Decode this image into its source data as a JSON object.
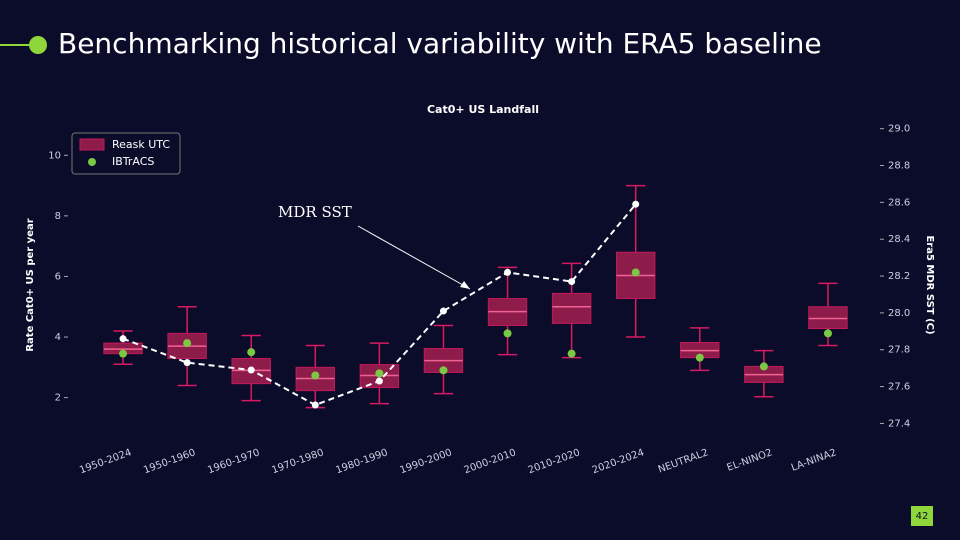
{
  "slide_title": "Benchmarking historical variability with ERA5 baseline",
  "page_number": "42",
  "chart_data": {
    "type": "box",
    "title": "Cat0+ US Landfall",
    "ylabel": "Rate Cat0+ US per year",
    "y2label": "Era5 MDR SST (C)",
    "annotation": "MDR SST",
    "categories": [
      "1950-2024",
      "1950-1960",
      "1960-1970",
      "1970-1980",
      "1980-1990",
      "1990-2000",
      "2000-2010",
      "2010-2020",
      "2020-2024",
      "NEUTRAL2",
      "EL-NINO2",
      "LA-NINA2"
    ],
    "ylim": [
      0.6,
      11
    ],
    "yticks": [
      2,
      4,
      6,
      8,
      10
    ],
    "y2lim": [
      27.31,
      29.02
    ],
    "y2ticks": [
      27.4,
      27.6,
      27.8,
      {
        "value": 28.0,
        "label": "28.0"
      },
      28.2,
      28.4,
      28.6,
      28.8,
      {
        "value": 29.0,
        "label": "29.0"
      }
    ],
    "legend": "upper left",
    "box": {
      "name": "Reask UTC",
      "color": "#8e1c4a",
      "low": [
        3.1,
        2.4,
        1.9,
        1.67,
        1.8,
        2.13,
        3.42,
        3.32,
        4.0,
        2.9,
        2.03,
        3.72
      ],
      "q1": [
        3.45,
        3.29,
        2.46,
        2.23,
        2.33,
        2.83,
        4.38,
        4.45,
        5.27,
        3.32,
        2.5,
        4.28
      ],
      "median": [
        3.6,
        3.7,
        2.9,
        2.63,
        2.73,
        3.22,
        4.84,
        5.0,
        6.03,
        3.55,
        2.76,
        4.61
      ],
      "q3": [
        3.8,
        4.12,
        3.29,
        3.0,
        3.09,
        3.62,
        5.27,
        5.44,
        6.8,
        3.82,
        3.03,
        5.0
      ],
      "high": [
        4.2,
        5.0,
        4.05,
        3.72,
        3.8,
        4.38,
        6.3,
        6.43,
        9.0,
        4.3,
        3.55,
        5.77
      ]
    },
    "points": {
      "name": "IBTrACS",
      "color": "#7ac943",
      "values": [
        3.45,
        3.8,
        3.5,
        2.73,
        2.8,
        2.9,
        4.12,
        3.45,
        6.13,
        3.32,
        3.03,
        4.12
      ]
    },
    "sst": {
      "axis": "y2",
      "color": "#ffffff",
      "values": [
        27.86,
        27.73,
        27.69,
        27.5,
        27.63,
        28.01,
        28.22,
        28.17,
        28.59,
        null,
        null,
        null
      ]
    }
  }
}
